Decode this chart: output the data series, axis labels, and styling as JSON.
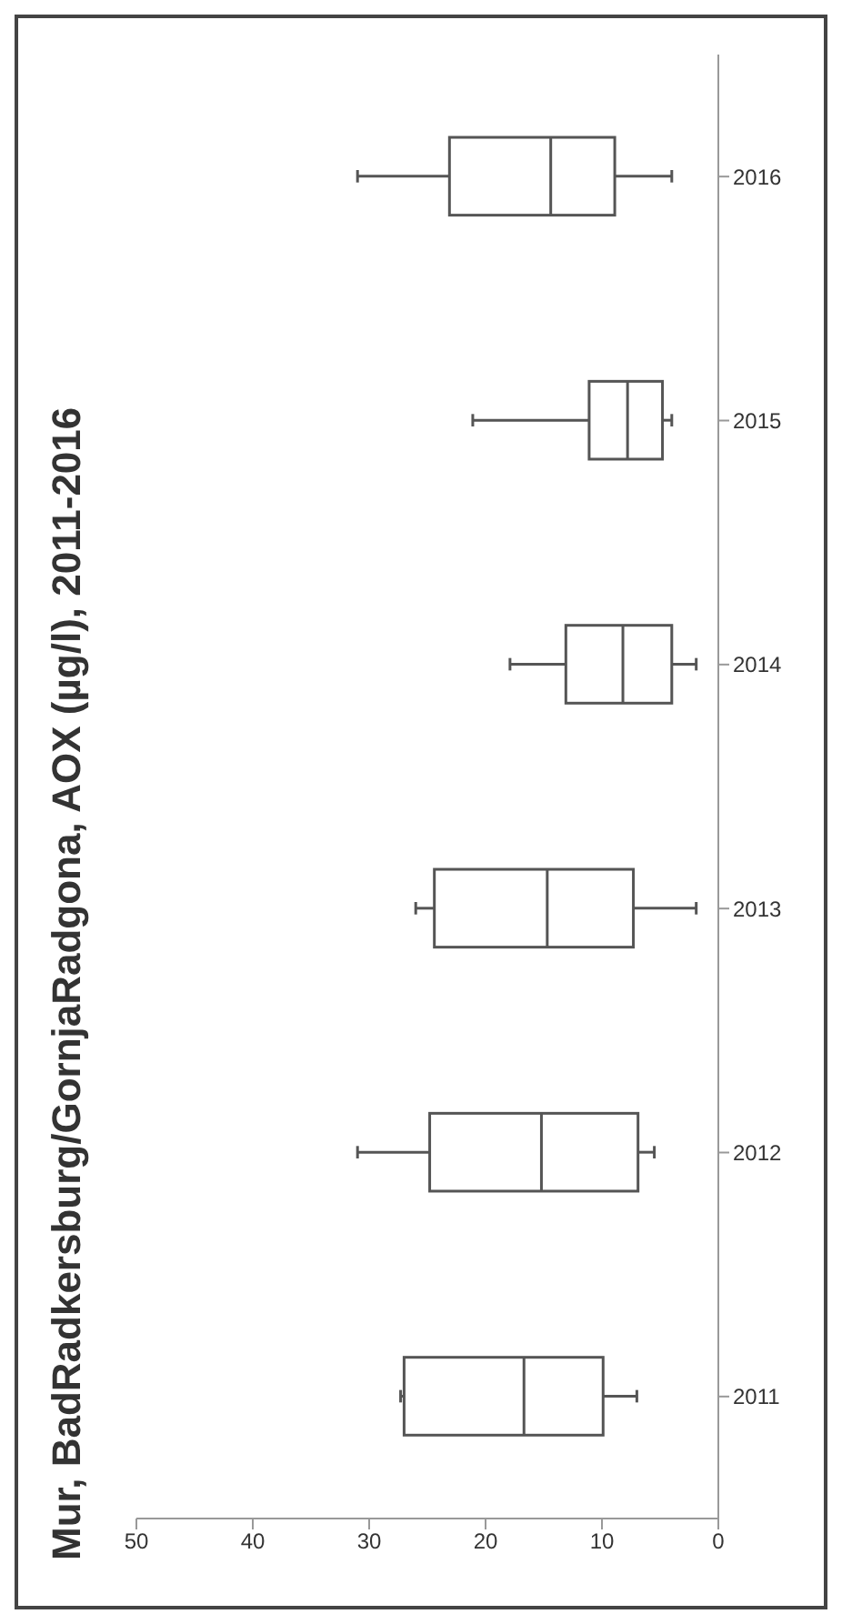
{
  "chart_data": {
    "type": "box",
    "title": "Mur, BadRadkersburg/GornjaRadgona, AOX (µg/l), 2011-2016",
    "orientation": "horizontal",
    "categories": [
      "2016",
      "2015",
      "2014",
      "2013",
      "2012",
      "2011"
    ],
    "boxes": [
      {
        "low": 4.0,
        "q1": 8.9,
        "median": 14.4,
        "q3": 23.1,
        "high": 31.0
      },
      {
        "low": 4.0,
        "q1": 4.8,
        "median": 7.8,
        "q3": 11.1,
        "high": 21.1
      },
      {
        "low": 1.9,
        "q1": 4.0,
        "median": 8.2,
        "q3": 13.1,
        "high": 17.9
      },
      {
        "low": 1.9,
        "q1": 7.3,
        "median": 14.7,
        "q3": 24.4,
        "high": 26.0
      },
      {
        "low": 5.5,
        "q1": 6.9,
        "median": 15.2,
        "q3": 24.8,
        "high": 31.0
      },
      {
        "low": 7.0,
        "q1": 9.9,
        "median": 16.7,
        "q3": 27.0,
        "high": 27.3
      }
    ],
    "color": "#555555",
    "xlim": [
      50,
      0
    ],
    "xticks": [
      50,
      40,
      30,
      20,
      10,
      0
    ],
    "grid": false
  }
}
